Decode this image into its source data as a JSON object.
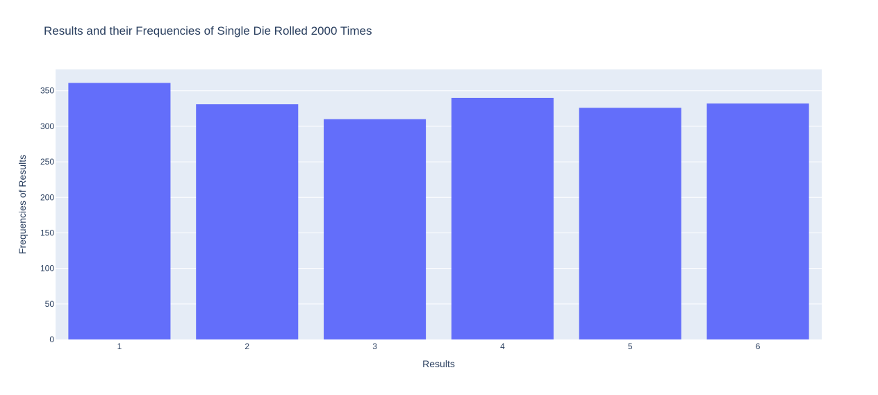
{
  "chart_data": {
    "type": "bar",
    "title": "Results and their Frequencies of Single Die Rolled 2000 Times",
    "xlabel": "Results",
    "ylabel": "Frequencies of Results",
    "categories": [
      "1",
      "2",
      "3",
      "4",
      "5",
      "6"
    ],
    "values": [
      361,
      331,
      310,
      340,
      326,
      332
    ],
    "ylim": [
      0,
      380
    ],
    "yticks": [
      0,
      50,
      100,
      150,
      200,
      250,
      300,
      350
    ],
    "grid": true,
    "bar_color": "#636efa",
    "plot_bg": "#e5ecf6",
    "grid_color": "#ffffff"
  }
}
